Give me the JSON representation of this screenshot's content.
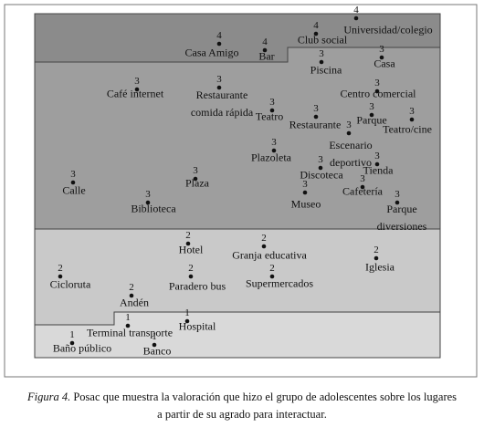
{
  "figure": {
    "nodes": [
      {
        "label": "Universidad/colegio",
        "level": 4
      },
      {
        "label": "Club social",
        "level": 4
      },
      {
        "label": "Casa Amigo",
        "level": 4
      },
      {
        "label": "Bar",
        "level": 4
      },
      {
        "label": "Piscina",
        "level": 3
      },
      {
        "label": "Casa",
        "level": 3
      },
      {
        "label": "Café internet",
        "level": 3
      },
      {
        "label": "Restaurante comida rápida",
        "level": 3
      },
      {
        "label": "Centro comercial",
        "level": 3
      },
      {
        "label": "Teatro",
        "level": 3
      },
      {
        "label": "Restaurante",
        "level": 3
      },
      {
        "label": "Parque",
        "level": 3
      },
      {
        "label": "Teatro/cine",
        "level": 3
      },
      {
        "label": "Escenario deportivo",
        "level": 3
      },
      {
        "label": "Plazoleta",
        "level": 3
      },
      {
        "label": "Tienda",
        "level": 3
      },
      {
        "label": "Discoteca",
        "level": 3
      },
      {
        "label": "Calle",
        "level": 3
      },
      {
        "label": "Plaza",
        "level": 3
      },
      {
        "label": "Cafetería",
        "level": 3
      },
      {
        "label": "Biblioteca",
        "level": 3
      },
      {
        "label": "Museo",
        "level": 3
      },
      {
        "label": "Parque diversiones",
        "level": 3
      },
      {
        "label": "Hotel",
        "level": 2
      },
      {
        "label": "Granja educativa",
        "level": 2
      },
      {
        "label": "Iglesia",
        "level": 2
      },
      {
        "label": "Cicloruta",
        "level": 2
      },
      {
        "label": "Paradero bus",
        "level": 2
      },
      {
        "label": "Supermercados",
        "level": 2
      },
      {
        "label": "Andén",
        "level": 2
      },
      {
        "label": "Terminal transporte",
        "level": 1
      },
      {
        "label": "Hospital",
        "level": 1
      },
      {
        "label": "Baño público",
        "level": 1
      },
      {
        "label": "Banco",
        "level": 1
      }
    ],
    "caption": {
      "label": "Figura 4.",
      "text": "Posac que muestra la valoración que hizo el grupo de adolescentes sobre los lugares a partir de su agrado para  interactuar."
    }
  }
}
